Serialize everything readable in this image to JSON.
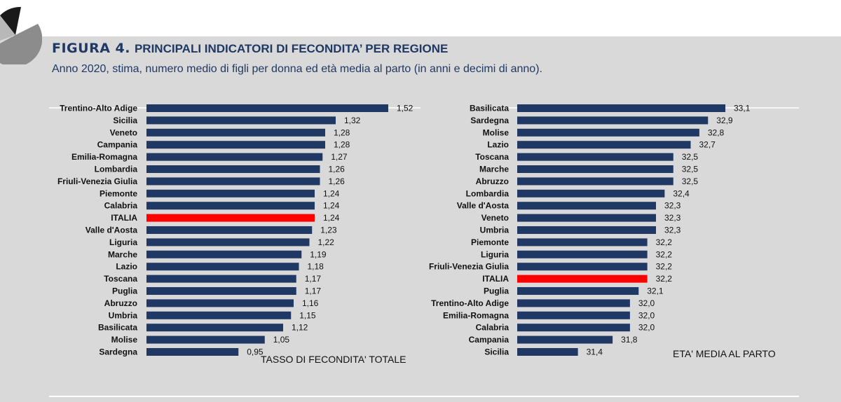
{
  "header": {
    "figure_label": "FIGURA 4.",
    "title": "PRINCIPALI INDICATORI DI FECONDITA’ PER REGIONE",
    "subtitle": "Anno 2020, stima, numero medio di figli per donna ed età media al parto (in anni e decimi di anno)."
  },
  "colors": {
    "panel_bg": "#d9d9d9",
    "bar": "#203864",
    "highlight_bar": "#ff0000",
    "title": "#1f3864"
  },
  "chart_data": [
    {
      "type": "bar",
      "orientation": "horizontal",
      "title": "TASSO DI FECONDITA' TOTALE",
      "categories": [
        "Trentino-Alto Adige",
        "Sicilia",
        "Veneto",
        "Campania",
        "Emilia-Romagna",
        "Lombardia",
        "Friuli-Venezia Giulia",
        "Piemonte",
        "Calabria",
        "ITALIA",
        "Valle d'Aosta",
        "Liguria",
        "Marche",
        "Lazio",
        "Toscana",
        "Puglia",
        "Abruzzo",
        "Umbria",
        "Basilicata",
        "Molise",
        "Sardegna"
      ],
      "values": [
        1.52,
        1.32,
        1.28,
        1.28,
        1.27,
        1.26,
        1.26,
        1.24,
        1.24,
        1.24,
        1.23,
        1.22,
        1.19,
        1.18,
        1.17,
        1.17,
        1.16,
        1.15,
        1.12,
        1.05,
        0.95
      ],
      "value_labels": [
        "1,52",
        "1,32",
        "1,28",
        "1,28",
        "1,27",
        "1,26",
        "1,26",
        "1,24",
        "1,24",
        "1,24",
        "1,23",
        "1,22",
        "1,19",
        "1,18",
        "1,17",
        "1,17",
        "1,16",
        "1,15",
        "1,12",
        "1,05",
        "0,95"
      ],
      "highlight": "ITALIA",
      "xlim": [
        0.6,
        1.52
      ]
    },
    {
      "type": "bar",
      "orientation": "horizontal",
      "title": "ETA' MEDIA AL PARTO",
      "categories": [
        "Basilicata",
        "Sardegna",
        "Molise",
        "Lazio",
        "Toscana",
        "Marche",
        "Abruzzo",
        "Lombardia",
        "Valle d'Aosta",
        "Veneto",
        "Umbria",
        "Piemonte",
        "Liguria",
        "Friuli-Venezia Giulia",
        "ITALIA",
        "Puglia",
        "Trentino-Alto Adige",
        "Emilia-Romagna",
        "Calabria",
        "Campania",
        "Sicilia"
      ],
      "values": [
        33.1,
        32.9,
        32.8,
        32.7,
        32.5,
        32.5,
        32.5,
        32.4,
        32.3,
        32.3,
        32.3,
        32.2,
        32.2,
        32.2,
        32.2,
        32.1,
        32.0,
        32.0,
        32.0,
        31.8,
        31.4
      ],
      "value_labels": [
        "33,1",
        "32,9",
        "32,8",
        "32,7",
        "32,5",
        "32,5",
        "32,5",
        "32,4",
        "32,3",
        "32,3",
        "32,3",
        "32,2",
        "32,2",
        "32,2",
        "32,2",
        "32,1",
        "32,0",
        "32,0",
        "32,0",
        "31,8",
        "31,4"
      ],
      "highlight": "ITALIA",
      "xlim": [
        30.7,
        33.1
      ]
    }
  ]
}
